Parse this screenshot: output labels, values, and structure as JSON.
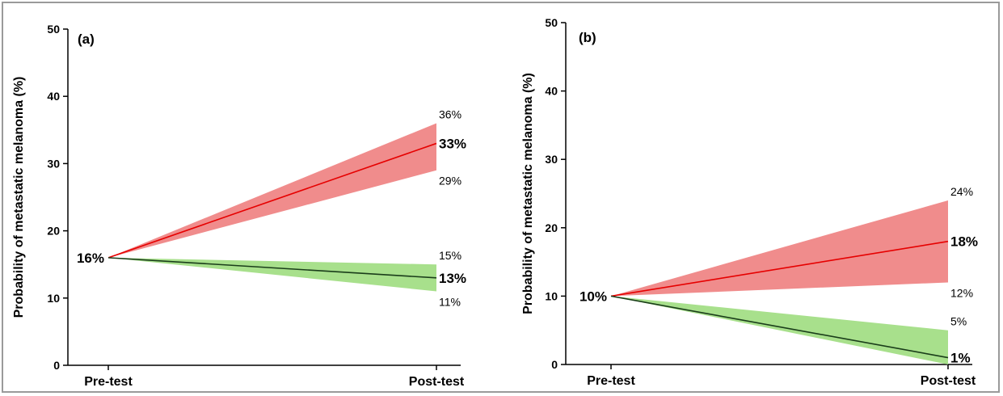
{
  "figure": {
    "colors": {
      "positive_line": "#e60000",
      "positive_band": "#f08c8c",
      "negative_line": "#1a3d1a",
      "negative_band": "#a8e08c",
      "frame": "#9a9a9a"
    }
  },
  "chart_data": [
    {
      "type": "line",
      "panel_label": "(a)",
      "categories": [
        "Pre-test",
        "Post-test"
      ],
      "ylabel": "Probability of metastatic melanoma (%)",
      "xlabel": "",
      "ylim": [
        0,
        50
      ],
      "yticks": [
        0,
        10,
        20,
        30,
        40,
        50
      ],
      "grid": false,
      "pretest": {
        "value": 16,
        "label": "16%"
      },
      "series": [
        {
          "kind": "positive",
          "values": [
            16,
            33
          ],
          "lower": [
            16,
            29
          ],
          "upper": [
            16,
            36
          ],
          "label": "33%",
          "lower_label": "29%",
          "upper_label": "36%"
        },
        {
          "kind": "negative",
          "values": [
            16,
            13
          ],
          "lower": [
            16,
            11
          ],
          "upper": [
            16,
            15
          ],
          "label": "13%",
          "lower_label": "11%",
          "upper_label": "15%"
        }
      ]
    },
    {
      "type": "line",
      "panel_label": "(b)",
      "categories": [
        "Pre-test",
        "Post-test"
      ],
      "ylabel": "Probability of metastatic melanoma (%)",
      "xlabel": "",
      "ylim": [
        0,
        50
      ],
      "yticks": [
        0,
        10,
        20,
        30,
        40,
        50
      ],
      "grid": false,
      "pretest": {
        "value": 10,
        "label": "10%"
      },
      "series": [
        {
          "kind": "positive",
          "values": [
            10,
            18
          ],
          "lower": [
            10,
            12
          ],
          "upper": [
            10,
            24
          ],
          "label": "18%",
          "lower_label": "12%",
          "upper_label": "24%"
        },
        {
          "kind": "negative",
          "values": [
            10,
            1
          ],
          "lower": [
            10,
            0
          ],
          "upper": [
            10,
            5
          ],
          "label": "1%",
          "lower_label": "",
          "upper_label": "5%"
        }
      ]
    }
  ]
}
